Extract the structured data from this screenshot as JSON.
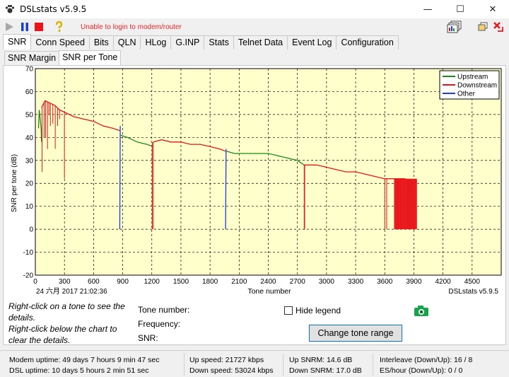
{
  "window": {
    "title": "DSLstats v5.9.5",
    "minimize": "—",
    "maximize": "☐",
    "close": "✕"
  },
  "toolbar": {
    "status_message": "Unable to login to modem/router"
  },
  "tabs": [
    "SNR",
    "Conn Speed",
    "Bits",
    "QLN",
    "HLog",
    "G.INP",
    "Stats",
    "Telnet Data",
    "Event Log",
    "Configuration"
  ],
  "subtabs": [
    "SNR Margin",
    "SNR per Tone"
  ],
  "chart_data": {
    "type": "line",
    "ylabel": "SNR per tone (dB)",
    "xlabel": "Tone number",
    "timestamp": "24 六月 2017 21:02:36",
    "watermark": "DSLstats v5.9.5",
    "xlim": [
      0,
      4800
    ],
    "ylim": [
      -20,
      70
    ],
    "x_ticks": [
      0,
      300,
      600,
      900,
      1200,
      1500,
      1800,
      2100,
      2400,
      2700,
      3000,
      3300,
      3600,
      3900,
      4200,
      4500
    ],
    "y_ticks": [
      -20,
      -10,
      0,
      10,
      20,
      30,
      40,
      50,
      60,
      70
    ],
    "grid": true,
    "legend": "top-right",
    "colors": {
      "Upstream": "#1a8c1a",
      "Downstream": "#e8161b",
      "Other": "#1f3fd1",
      "plot_bg": "#ffffcc"
    },
    "series": [
      {
        "name": "Upstream",
        "x": [
          33,
          40,
          50,
          60,
          64
        ],
        "y": [
          44,
          52,
          48,
          44,
          38
        ]
      },
      {
        "name": "Upstream",
        "x": [
          880,
          950,
          1050,
          1150,
          1215
        ],
        "y": [
          41,
          40,
          38,
          37,
          36
        ]
      },
      {
        "name": "Upstream",
        "x": [
          1970,
          2050,
          2200,
          2400,
          2500,
          2600,
          2700,
          2770
        ],
        "y": [
          34,
          33,
          33,
          33,
          32,
          31,
          30,
          28
        ]
      },
      {
        "name": "Downstream",
        "x": [
          64,
          100,
          150,
          200,
          250,
          300,
          400,
          500,
          600,
          700,
          800,
          870
        ],
        "y": [
          53,
          56,
          55,
          54,
          52,
          51,
          49,
          48,
          47,
          45,
          44,
          43
        ]
      },
      {
        "name": "Downstream",
        "x": [
          1215,
          1300,
          1400,
          1500,
          1600,
          1700,
          1800,
          1900,
          1960
        ],
        "y": [
          38,
          39,
          38,
          38,
          37,
          37,
          36,
          35,
          34
        ]
      },
      {
        "name": "Downstream",
        "x": [
          2770,
          2900,
          3000,
          3100,
          3200,
          3300,
          3400,
          3500,
          3600,
          3700,
          3800,
          3900,
          3930
        ],
        "y": [
          28,
          28,
          27,
          26,
          25,
          25,
          24,
          23,
          22,
          22,
          22,
          21,
          21
        ]
      },
      {
        "name": "Other",
        "x": [
          870,
          875
        ],
        "y": [
          0,
          45
        ]
      },
      {
        "name": "Other",
        "x": [
          1960,
          1965
        ],
        "y": [
          0,
          35
        ]
      }
    ],
    "dropouts": [
      {
        "name": "Downstream",
        "x": [
          70,
          90,
          105,
          125,
          140,
          155,
          180,
          205,
          230,
          250,
          300,
          1205,
          1215,
          2770,
          2775,
          3600,
          3620,
          3700,
          3720,
          3740,
          3760,
          3780,
          3800,
          3820,
          3840,
          3860,
          3880,
          3900,
          3920
        ],
        "low": [
          25,
          40,
          40,
          35,
          50,
          45,
          46,
          35,
          45,
          48,
          22,
          0,
          0,
          0,
          0,
          0,
          0,
          0,
          0,
          0,
          0,
          0,
          0,
          0,
          0,
          0,
          0,
          0,
          0
        ]
      }
    ]
  },
  "details": {
    "hint_line1": "Right-click on a tone to see the details.",
    "hint_line2": "Right-click below the chart to clear the details.",
    "tone_label": "Tone number:",
    "freq_label": "Frequency:",
    "snr_label": "SNR:",
    "hide_legend": "Hide legend",
    "change_range": "Change tone range"
  },
  "status": {
    "modem_uptime": "Modem uptime: 49 days 7 hours 9 min 47 sec",
    "dsl_uptime": "DSL uptime: 10 days 5 hours 2 min 51 sec",
    "up_speed": "Up speed: 21727 kbps",
    "down_speed": "Down speed: 53024 kbps",
    "up_snrm": "Up SNRM: 14.6 dB",
    "down_snrm": "Down SNRM: 17.0 dB",
    "interleave": "Interleave (Down/Up): 16 / 8",
    "es_hour": "ES/hour (Down/Up): 0 / 0"
  }
}
